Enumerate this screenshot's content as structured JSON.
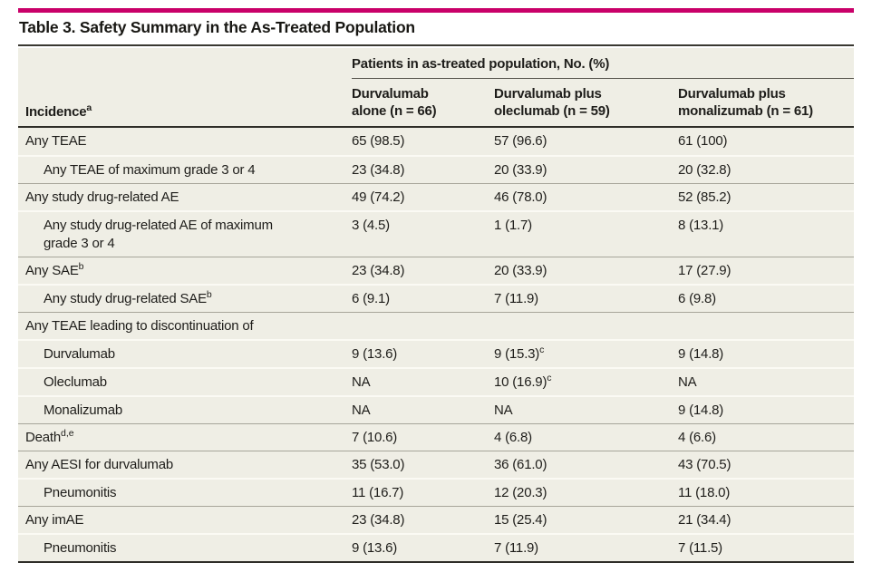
{
  "accent_color": "#c90069",
  "title": "Table 3. Safety Summary in the As-Treated Population",
  "table": {
    "spanner": "Patients in as-treated population, No. (%)",
    "row_header": {
      "text": "Incidence",
      "sup": "a"
    },
    "columns": [
      {
        "line1": "Durvalumab",
        "line2": "alone (n = 66)"
      },
      {
        "line1": "Durvalumab plus",
        "line2": "oleclumab (n = 59)"
      },
      {
        "line1": "Durvalumab plus",
        "line2": "monalizumab (n = 61)"
      }
    ],
    "groups": [
      {
        "rows": [
          {
            "label": {
              "text": "Any TEAE"
            },
            "indent": false,
            "cells": [
              {
                "text": "65 (98.5)"
              },
              {
                "text": "57 (96.6)"
              },
              {
                "text": "61 (100)"
              }
            ]
          },
          {
            "label": {
              "text": "Any TEAE of maximum grade 3 or 4"
            },
            "indent": true,
            "cells": [
              {
                "text": "23 (34.8)"
              },
              {
                "text": "20 (33.9)"
              },
              {
                "text": "20 (32.8)"
              }
            ]
          }
        ]
      },
      {
        "rows": [
          {
            "label": {
              "text": "Any study drug-related AE"
            },
            "indent": false,
            "cells": [
              {
                "text": "49 (74.2)"
              },
              {
                "text": "46 (78.0)"
              },
              {
                "text": "52 (85.2)"
              }
            ]
          },
          {
            "label": {
              "text": "Any study drug-related AE of maximum grade 3 or 4"
            },
            "indent": true,
            "cells": [
              {
                "text": "3 (4.5)"
              },
              {
                "text": "1 (1.7)"
              },
              {
                "text": "8 (13.1)"
              }
            ]
          }
        ]
      },
      {
        "rows": [
          {
            "label": {
              "text": "Any SAE",
              "sup": "b"
            },
            "indent": false,
            "cells": [
              {
                "text": "23 (34.8)"
              },
              {
                "text": "20 (33.9)"
              },
              {
                "text": "17 (27.9)"
              }
            ]
          },
          {
            "label": {
              "text": "Any study drug-related SAE",
              "sup": "b"
            },
            "indent": true,
            "cells": [
              {
                "text": "6 (9.1)"
              },
              {
                "text": "7 (11.9)"
              },
              {
                "text": "6 (9.8)"
              }
            ]
          }
        ]
      },
      {
        "rows": [
          {
            "label": {
              "text": "Any TEAE leading to discontinuation of"
            },
            "indent": false,
            "cells": [
              {
                "text": ""
              },
              {
                "text": ""
              },
              {
                "text": ""
              }
            ]
          },
          {
            "label": {
              "text": "Durvalumab"
            },
            "indent": true,
            "cells": [
              {
                "text": "9 (13.6)"
              },
              {
                "text": "9 (15.3)",
                "sup": "c"
              },
              {
                "text": "9 (14.8)"
              }
            ]
          },
          {
            "label": {
              "text": "Oleclumab"
            },
            "indent": true,
            "cells": [
              {
                "text": "NA"
              },
              {
                "text": "10 (16.9)",
                "sup": "c"
              },
              {
                "text": "NA"
              }
            ]
          },
          {
            "label": {
              "text": "Monalizumab"
            },
            "indent": true,
            "cells": [
              {
                "text": "NA"
              },
              {
                "text": "NA"
              },
              {
                "text": "9 (14.8)"
              }
            ]
          }
        ]
      },
      {
        "rows": [
          {
            "label": {
              "text": "Death",
              "sup": "d,e"
            },
            "indent": false,
            "cells": [
              {
                "text": "7 (10.6)"
              },
              {
                "text": "4 (6.8)"
              },
              {
                "text": "4 (6.6)"
              }
            ]
          }
        ]
      },
      {
        "rows": [
          {
            "label": {
              "text": "Any AESI for durvalumab"
            },
            "indent": false,
            "cells": [
              {
                "text": "35 (53.0)"
              },
              {
                "text": "36 (61.0)"
              },
              {
                "text": "43 (70.5)"
              }
            ]
          },
          {
            "label": {
              "text": "Pneumonitis"
            },
            "indent": true,
            "cells": [
              {
                "text": "11 (16.7)"
              },
              {
                "text": "12 (20.3)"
              },
              {
                "text": "11 (18.0)"
              }
            ]
          }
        ]
      },
      {
        "rows": [
          {
            "label": {
              "text": "Any imAE"
            },
            "indent": false,
            "cells": [
              {
                "text": "23 (34.8)"
              },
              {
                "text": "15 (25.4)"
              },
              {
                "text": "21 (34.4)"
              }
            ]
          },
          {
            "label": {
              "text": "Pneumonitis"
            },
            "indent": true,
            "cells": [
              {
                "text": "9 (13.6)"
              },
              {
                "text": "7 (11.9)"
              },
              {
                "text": "7 (11.5)"
              }
            ]
          }
        ]
      }
    ]
  }
}
